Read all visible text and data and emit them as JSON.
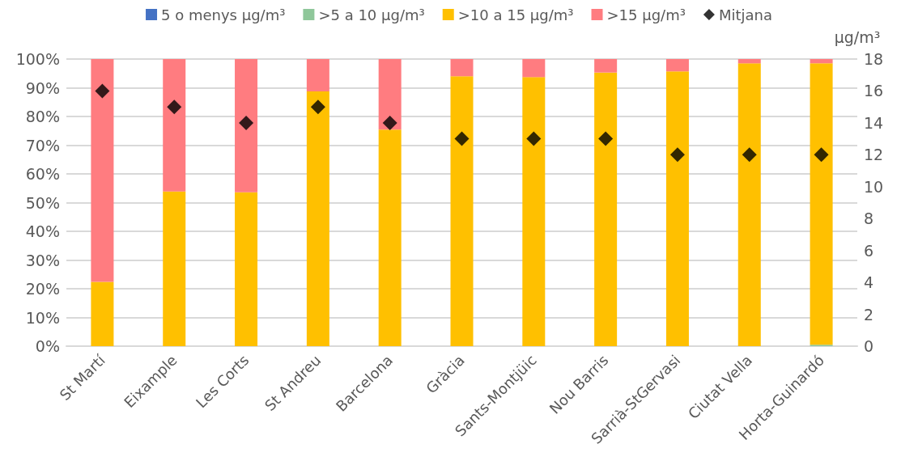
{
  "chart_data": {
    "type": "bar",
    "stacked": true,
    "y2label": "μg/m³",
    "legend": "top",
    "grid": "y",
    "categories": [
      "St Martí",
      "Eixample",
      "Les Corts",
      "St Andreu",
      "Barcelona",
      "Gràcia",
      "Sants-Montjüic",
      "Nou Barris",
      "Sarrià-StGervasi",
      "Ciutat Vella",
      "Horta-Guinardó"
    ],
    "series": [
      {
        "name": "5 o menys μg/m³",
        "color": "#4472c4",
        "values": [
          0,
          0,
          0,
          0,
          0,
          0,
          0,
          0,
          0,
          0,
          0
        ]
      },
      {
        "name": ">5 a 10 μg/m³",
        "color": "#8fc79a",
        "values": [
          0,
          0,
          0,
          0,
          0,
          0,
          0,
          0,
          0,
          0,
          0.5
        ]
      },
      {
        "name": ">10 a 15 μg/m³",
        "color": "#ffc000",
        "values": [
          22.4,
          53.9,
          53.6,
          88.7,
          75.4,
          94,
          93.7,
          95.3,
          95.7,
          98.5,
          98
        ]
      },
      {
        "name": ">15 μg/m³",
        "color": "#ff7c80",
        "values": [
          77.6,
          46.1,
          46.4,
          11.3,
          24.6,
          6,
          6.3,
          4.7,
          4.3,
          1.5,
          1.5
        ]
      },
      {
        "name": "Mitjana",
        "type": "scatter",
        "axis": "y2",
        "marker": "diamond",
        "color": "#000000",
        "values": [
          16,
          15,
          14,
          15,
          14,
          13,
          13,
          13,
          12,
          12,
          12
        ]
      }
    ],
    "ylim": [
      0,
      100
    ],
    "yticks": [
      {
        "value": 0,
        "label": "0%"
      },
      {
        "value": 10,
        "label": "10%"
      },
      {
        "value": 20,
        "label": "20%"
      },
      {
        "value": 30,
        "label": "30%"
      },
      {
        "value": 40,
        "label": "40%"
      },
      {
        "value": 50,
        "label": "50%"
      },
      {
        "value": 60,
        "label": "60%"
      },
      {
        "value": 70,
        "label": "70%"
      },
      {
        "value": 80,
        "label": "80%"
      },
      {
        "value": 90,
        "label": "90%"
      },
      {
        "value": 100,
        "label": "100%"
      }
    ],
    "y2lim": [
      0,
      18
    ],
    "y2ticks": [
      0,
      2,
      4,
      6,
      8,
      10,
      12,
      14,
      16,
      18
    ]
  }
}
